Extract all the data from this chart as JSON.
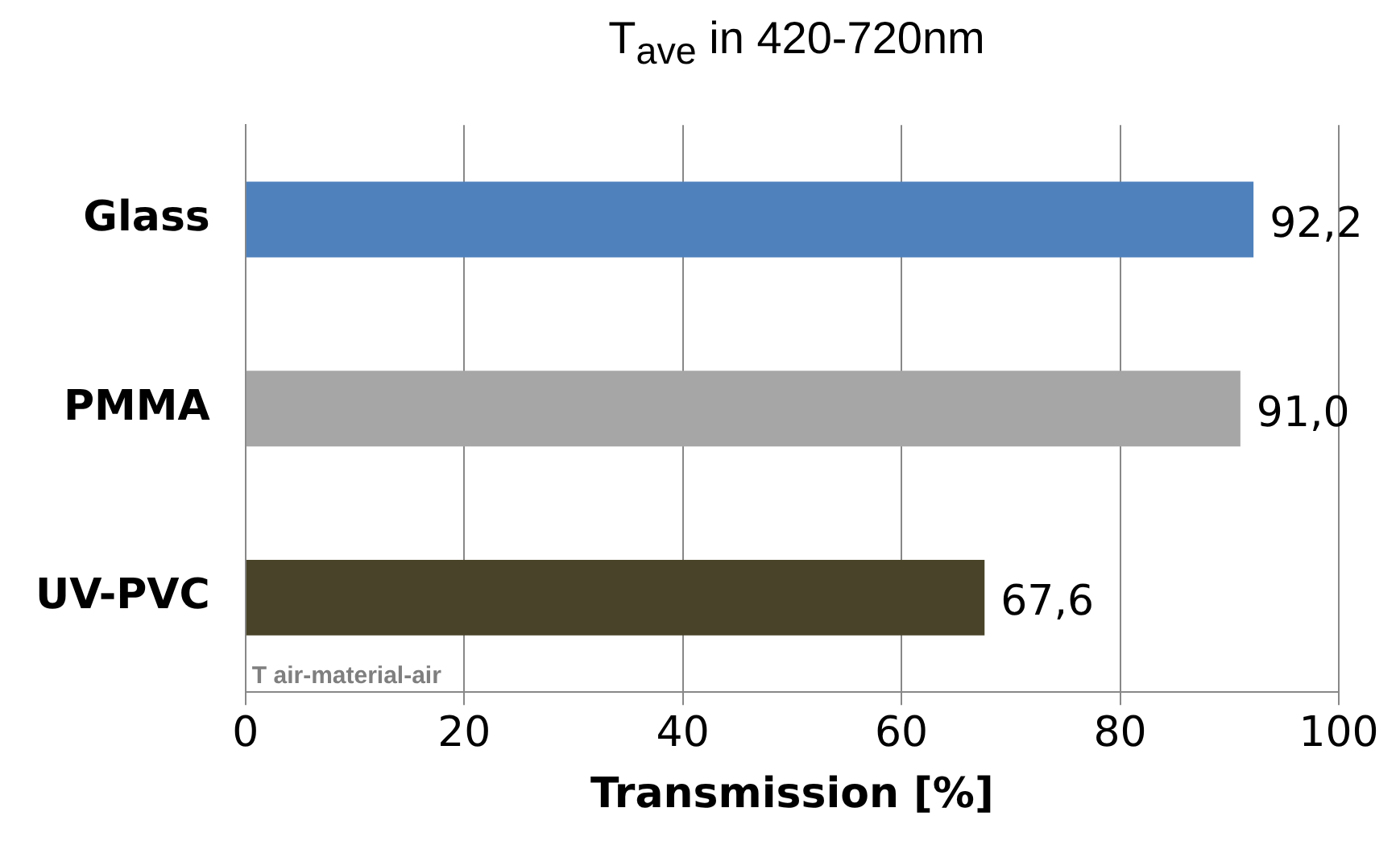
{
  "chart_data": {
    "type": "bar",
    "orientation": "horizontal",
    "title": "T$_{ave}$ in 420-720nm",
    "xlabel": "Transmission [%]",
    "categories": [
      "Glass",
      "PMMA",
      "UV-PVC"
    ],
    "values": [
      92.2,
      91.0,
      67.6
    ],
    "colors": [
      "#4f81bd",
      "#a6a6a6",
      "#494429"
    ],
    "value_labels": [
      "92,2",
      "91,0",
      "67,6"
    ],
    "xlim": [
      0,
      100
    ],
    "xticks": [
      0,
      20,
      40,
      60,
      80,
      100
    ],
    "grid": "x",
    "legend": false,
    "annotations": [
      "T air-material-air"
    ]
  }
}
